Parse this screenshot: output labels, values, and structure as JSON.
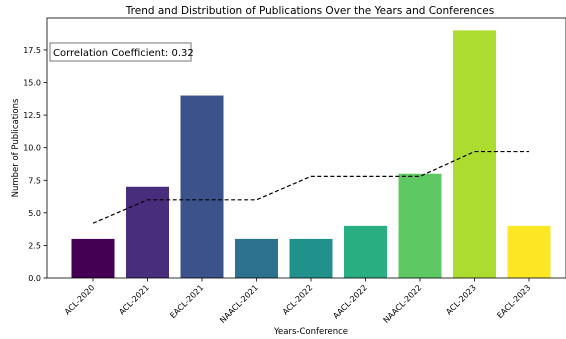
{
  "chart_data": {
    "type": "bar",
    "title": "Trend and Distribution of Publications Over the Years and Conferences",
    "xlabel": "Years-Conference",
    "ylabel": "Number of Publications",
    "ylim": [
      0,
      19.95
    ],
    "yticks": [
      0.0,
      2.5,
      5.0,
      7.5,
      10.0,
      12.5,
      15.0,
      17.5
    ],
    "ytick_labels": [
      "0.0",
      "2.5",
      "5.0",
      "7.5",
      "10.0",
      "12.5",
      "15.0",
      "17.5"
    ],
    "categories": [
      "ACL-2020",
      "ACL-2021",
      "EACL-2021",
      "NAACL-2021",
      "ACL-2022",
      "AACL-2022",
      "NAACL-2022",
      "ACL-2023",
      "EACL-2023"
    ],
    "values": [
      3,
      7,
      14,
      3,
      3,
      4,
      8,
      19,
      4
    ],
    "bar_colors": [
      "#440154",
      "#472d7b",
      "#3b528b",
      "#2c728e",
      "#21918c",
      "#28ae80",
      "#5ec962",
      "#addc30",
      "#fde725"
    ],
    "trend_line": {
      "style": "dashed",
      "color": "#000000",
      "values": [
        4.2,
        6.0,
        6.0,
        6.0,
        7.8,
        7.8,
        7.8,
        9.7,
        9.7
      ]
    },
    "annotation": "Correlation Coefficient: 0.32",
    "grid": false,
    "legend": "none"
  }
}
